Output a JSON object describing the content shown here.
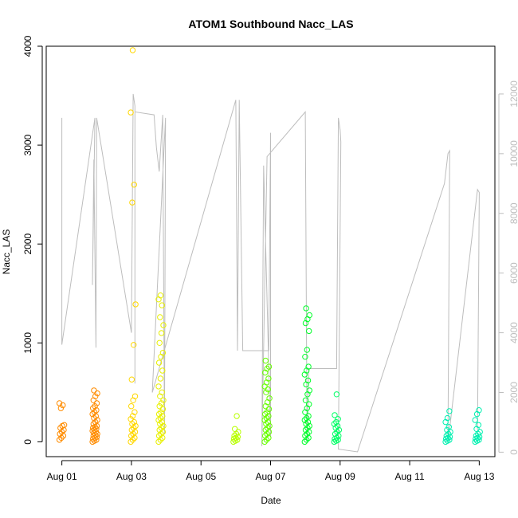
{
  "chart_data": {
    "type": "scatter",
    "title": "ATOM1 Southbound Nacc_LAS",
    "xlabel": "Date",
    "ylabel": "Nacc_LAS",
    "x_ticks": [
      "Aug 01",
      "Aug 03",
      "Aug 05",
      "Aug 07",
      "Aug 09",
      "Aug 11",
      "Aug 13"
    ],
    "x_tick_days": [
      1,
      3,
      5,
      7,
      9,
      11,
      13
    ],
    "xlim_days": [
      0.55,
      13.45
    ],
    "ylim": [
      -150,
      4000
    ],
    "y_ticks": [
      0,
      1000,
      2000,
      3000,
      4000
    ],
    "y2_ticks": [
      0,
      2000,
      4000,
      6000,
      8000,
      10000,
      12000
    ],
    "y2lim": [
      -150,
      13600
    ],
    "grid": false,
    "series": [
      {
        "color": "#ff8c00",
        "clusters": [
          {
            "day": 1.0,
            "y": [
              20,
              40,
              60,
              80,
              100,
              120,
              140,
              160,
              170,
              340,
              370,
              390
            ]
          },
          {
            "day": 1.95,
            "y": [
              0,
              10,
              20,
              30,
              40,
              50,
              60,
              70,
              80,
              90,
              100,
              110,
              120,
              130,
              140,
              150,
              160,
              180,
              200,
              220,
              240,
              260,
              280,
              300,
              320,
              340,
              360,
              390,
              420,
              460,
              490,
              520
            ]
          }
        ]
      },
      {
        "color": "#ffd700",
        "clusters": [
          {
            "day": 3.05,
            "y": [
              0,
              20,
              40,
              60,
              80,
              100,
              120,
              140,
              160,
              180,
              200,
              230,
              260,
              300,
              360,
              420,
              460,
              630,
              980,
              1390,
              2420,
              2600,
              3330,
              3960
            ]
          }
        ]
      },
      {
        "color": "#e8f000",
        "clusters": [
          {
            "day": 3.85,
            "y": [
              0,
              20,
              40,
              60,
              80,
              100,
              120,
              140,
              160,
              180,
              200,
              220,
              240,
              260,
              280,
              300,
              330,
              360,
              390,
              420,
              460,
              500,
              560,
              640,
              720,
              800,
              860,
              900,
              1000,
              1100,
              1180,
              1260,
              1380,
              1440,
              1480
            ]
          }
        ]
      },
      {
        "color": "#b8ff00",
        "clusters": [
          {
            "day": 6.0,
            "y": [
              0,
              10,
              20,
              30,
              40,
              50,
              60,
              80,
              100,
              130,
              260
            ]
          }
        ]
      },
      {
        "color": "#66ff00",
        "clusters": [
          {
            "day": 6.9,
            "y": [
              0,
              20,
              40,
              60,
              80,
              100,
              120,
              140,
              160,
              180,
              200,
              220,
              240,
              260,
              280,
              300,
              330,
              360,
              400,
              440,
              500,
              530,
              560,
              600,
              640,
              700,
              740,
              760,
              820
            ]
          }
        ]
      },
      {
        "color": "#00ff2a",
        "clusters": [
          {
            "day": 8.05,
            "y": [
              0,
              20,
              40,
              60,
              80,
              100,
              120,
              140,
              160,
              180,
              200,
              220,
              240,
              260,
              300,
              340,
              380,
              420,
              480,
              520,
              580,
              620,
              680,
              720,
              760,
              860,
              930,
              1120,
              1200,
              1240,
              1280,
              1350
            ]
          }
        ]
      },
      {
        "color": "#00ff66",
        "clusters": [
          {
            "day": 8.9,
            "y": [
              0,
              10,
              20,
              30,
              40,
              60,
              80,
              100,
              120,
              140,
              160,
              180,
              200,
              230,
              270,
              480
            ]
          }
        ]
      },
      {
        "color": "#00f0b0",
        "clusters": [
          {
            "day": 12.1,
            "y": [
              0,
              10,
              20,
              30,
              40,
              50,
              60,
              80,
              100,
              120,
              150,
              200,
              240,
              310
            ]
          },
          {
            "day": 12.95,
            "y": [
              0,
              10,
              20,
              30,
              40,
              50,
              60,
              80,
              100,
              130,
              170,
              220,
              280,
              320
            ]
          }
        ]
      }
    ],
    "secondary_trace": {
      "color": "#bdbdbd",
      "points": [
        [
          1.0,
          11200
        ],
        [
          1.0,
          3600
        ],
        [
          1.95,
          11200
        ],
        [
          1.88,
          5600
        ],
        [
          1.92,
          9800
        ],
        [
          1.98,
          3500
        ],
        [
          2.0,
          11200
        ],
        [
          3.0,
          4000
        ],
        [
          3.05,
          12000
        ],
        [
          3.1,
          11600
        ],
        [
          3.1,
          2300
        ],
        [
          3.1,
          11400
        ],
        [
          3.65,
          11300
        ],
        [
          3.72,
          10200
        ],
        [
          3.8,
          9400
        ],
        [
          3.9,
          11300
        ],
        [
          3.95,
          600
        ],
        [
          3.98,
          11200
        ],
        [
          3.6,
          2000
        ],
        [
          6.0,
          11800
        ],
        [
          6.05,
          3400
        ],
        [
          6.1,
          11800
        ],
        [
          6.2,
          3400
        ],
        [
          6.95,
          3400
        ],
        [
          7.0,
          10700
        ],
        [
          7.0,
          500
        ],
        [
          6.8,
          9600
        ],
        [
          6.75,
          200
        ],
        [
          6.9,
          9900
        ],
        [
          8.0,
          11400
        ],
        [
          8.05,
          300
        ],
        [
          8.1,
          2800
        ],
        [
          8.9,
          2800
        ],
        [
          8.95,
          11200
        ],
        [
          9.0,
          10800
        ],
        [
          9.02,
          10400
        ],
        [
          8.95,
          100
        ],
        [
          9.5,
          10
        ],
        [
          12.0,
          9000
        ],
        [
          12.1,
          10000
        ],
        [
          12.15,
          10100
        ],
        [
          12.1,
          300
        ],
        [
          12.95,
          8800
        ],
        [
          13.0,
          8700
        ],
        [
          12.95,
          750
        ]
      ]
    }
  }
}
